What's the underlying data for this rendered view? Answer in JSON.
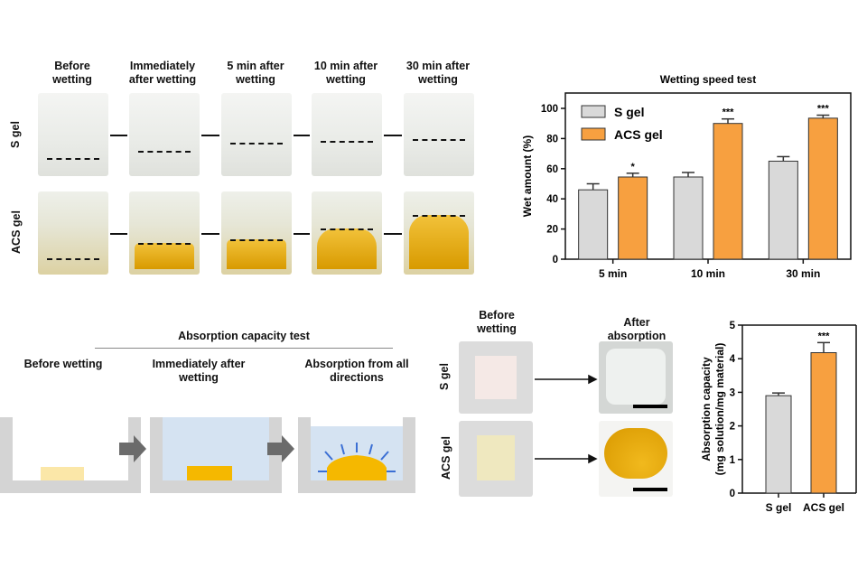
{
  "photo_panel": {
    "columns": [
      "Before wetting",
      "Immediately after wetting",
      "5 min after wetting",
      "10 min after wetting",
      "30 min after wetting"
    ],
    "rows": [
      "S gel",
      "ACS gel"
    ]
  },
  "absorption_diagram": {
    "title": "Absorption capacity test",
    "steps": [
      "Before wetting",
      "Immediately after wetting",
      "Absorption from all directions"
    ]
  },
  "absorption_photos": {
    "columns": [
      "Before wetting",
      "After absorption"
    ],
    "rows": [
      "S gel",
      "ACS gel"
    ]
  },
  "colors": {
    "s_gel": "#d9d9d9",
    "acs_gel": "#f7a040",
    "gel_yellow": "#f5b800",
    "water": "#d5e3f2"
  },
  "chart_data": [
    {
      "type": "bar",
      "title": "Wetting speed test",
      "xlabel": "",
      "ylabel": "Wet amount (%)",
      "categories": [
        "5 min",
        "10 min",
        "30 min"
      ],
      "ylim": [
        0,
        110
      ],
      "yticks": [
        0,
        20,
        40,
        60,
        80,
        100
      ],
      "legend": "top-left",
      "series": [
        {
          "name": "S gel",
          "values": [
            46,
            54.5,
            65
          ],
          "errors": [
            4,
            3,
            3
          ],
          "significance": [
            "",
            "",
            ""
          ]
        },
        {
          "name": "ACS gel",
          "values": [
            54.5,
            90,
            93.5
          ],
          "errors": [
            2.5,
            3,
            2
          ],
          "significance": [
            "*",
            "***",
            "***"
          ]
        }
      ]
    },
    {
      "type": "bar",
      "title": "",
      "xlabel": "",
      "ylabel": "Absorption capacity (mg solution/mg material)",
      "ylabel_lines": [
        "Absorption capacity",
        "(mg solution/mg material)"
      ],
      "categories": [
        "S gel",
        "ACS gel"
      ],
      "ylim": [
        0,
        5
      ],
      "yticks": [
        0,
        1,
        2,
        3,
        4,
        5
      ],
      "values": [
        2.9,
        4.18
      ],
      "errors": [
        0.08,
        0.3
      ],
      "significance": [
        "",
        "***"
      ]
    }
  ]
}
